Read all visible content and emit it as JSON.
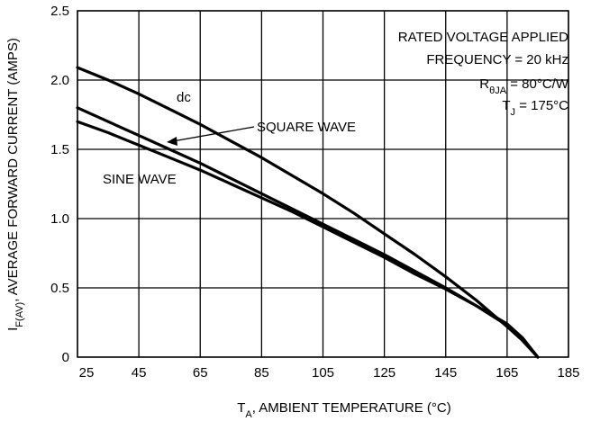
{
  "chart_data": {
    "type": "line",
    "title": "",
    "xlabel": {
      "main": "T",
      "sub": "A",
      "rest": ", AMBIENT TEMPERATURE (°C)"
    },
    "ylabel": {
      "main": "I",
      "sub": "F(AV)",
      "rest": ", AVERAGE FORWARD CURRENT (AMPS)"
    },
    "xlim": [
      25,
      185
    ],
    "ylim": [
      0,
      2.5
    ],
    "xticks": [
      25,
      45,
      65,
      85,
      105,
      125,
      145,
      165,
      185
    ],
    "yticks": [
      0,
      0.5,
      1.0,
      1.5,
      2.0,
      2.5
    ],
    "ytick_labels": [
      "0",
      "0.5",
      "1.0",
      "1.5",
      "2.0",
      "2.5"
    ],
    "grid": true,
    "series": [
      {
        "name": "dc",
        "x": [
          25,
          35,
          45,
          55,
          65,
          75,
          85,
          95,
          105,
          115,
          125,
          135,
          145,
          155,
          165,
          170,
          175
        ],
        "y": [
          2.09,
          2.0,
          1.9,
          1.79,
          1.68,
          1.56,
          1.44,
          1.31,
          1.18,
          1.04,
          0.89,
          0.74,
          0.58,
          0.41,
          0.22,
          0.12,
          0.0
        ]
      },
      {
        "name": "SQUARE WAVE",
        "x": [
          25,
          35,
          45,
          55,
          65,
          75,
          85,
          95,
          105,
          115,
          125,
          135,
          145,
          155,
          165,
          170,
          175
        ],
        "y": [
          1.8,
          1.7,
          1.6,
          1.5,
          1.4,
          1.29,
          1.18,
          1.07,
          0.96,
          0.85,
          0.74,
          0.62,
          0.5,
          0.37,
          0.23,
          0.13,
          0.0
        ]
      },
      {
        "name": "SINE WAVE",
        "x": [
          25,
          35,
          45,
          55,
          65,
          75,
          85,
          95,
          105,
          115,
          125,
          135,
          145,
          155,
          165,
          170,
          175
        ],
        "y": [
          1.7,
          1.62,
          1.53,
          1.44,
          1.35,
          1.25,
          1.15,
          1.05,
          0.94,
          0.83,
          0.72,
          0.6,
          0.49,
          0.37,
          0.24,
          0.14,
          0.0
        ]
      }
    ],
    "annotations": {
      "conditions": [
        {
          "main": "RATED VOLTAGE APPLIED"
        },
        {
          "main": "FREQUENCY = 20 kHz"
        },
        {
          "main": "R",
          "sub": "θJA",
          "rest": " = 80°C/W"
        },
        {
          "main": "T",
          "sub": "J",
          "rest": " = 175°C"
        }
      ],
      "dc_label": "dc",
      "square_label": "SQUARE WAVE",
      "sine_label": "SINE WAVE"
    }
  }
}
